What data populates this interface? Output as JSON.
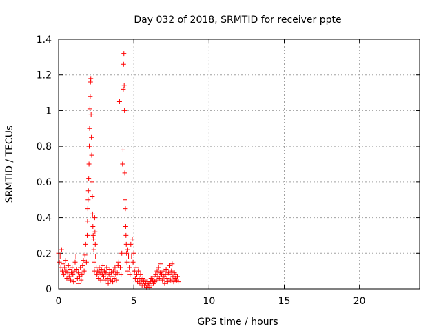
{
  "chart_data": {
    "type": "scatter",
    "title": "Day 032 of 2018, SRMTID for receiver ppte",
    "xlabel": "GPS time / hours",
    "ylabel": "SRMTID / TECUs",
    "xlim": [
      0,
      24
    ],
    "ylim": [
      0,
      1.4
    ],
    "xticks": [
      "0",
      "5",
      "10",
      "15",
      "20"
    ],
    "yticks": [
      "0",
      "0.2",
      "0.4",
      "0.6",
      "0.8",
      "1",
      "1.2",
      "1.4"
    ],
    "grid": true,
    "marker": "+",
    "color": "#ff0000",
    "series": [
      {
        "points": [
          [
            0.0,
            0.2
          ],
          [
            0.05,
            0.15
          ],
          [
            0.1,
            0.18
          ],
          [
            0.15,
            0.12
          ],
          [
            0.2,
            0.22
          ],
          [
            0.25,
            0.1
          ],
          [
            0.3,
            0.14
          ],
          [
            0.35,
            0.08
          ],
          [
            0.4,
            0.12
          ],
          [
            0.45,
            0.16
          ],
          [
            0.5,
            0.1
          ],
          [
            0.55,
            0.06
          ],
          [
            0.6,
            0.09
          ],
          [
            0.65,
            0.13
          ],
          [
            0.7,
            0.07
          ],
          [
            0.75,
            0.11
          ],
          [
            0.8,
            0.05
          ],
          [
            0.85,
            0.09
          ],
          [
            0.9,
            0.12
          ],
          [
            0.95,
            0.08
          ],
          [
            1.0,
            0.04
          ],
          [
            1.05,
            0.1
          ],
          [
            1.1,
            0.15
          ],
          [
            1.15,
            0.18
          ],
          [
            1.2,
            0.11
          ],
          [
            1.25,
            0.06
          ],
          [
            1.3,
            0.09
          ],
          [
            1.35,
            0.03
          ],
          [
            1.4,
            0.07
          ],
          [
            1.45,
            0.12
          ],
          [
            1.5,
            0.05
          ],
          [
            1.55,
            0.08
          ],
          [
            1.6,
            0.13
          ],
          [
            1.65,
            0.16
          ],
          [
            1.7,
            0.1
          ],
          [
            1.75,
            0.19
          ],
          [
            1.8,
            0.25
          ],
          [
            1.85,
            0.15
          ],
          [
            1.9,
            0.3
          ],
          [
            1.92,
            0.38
          ],
          [
            1.94,
            0.45
          ],
          [
            1.96,
            0.5
          ],
          [
            1.98,
            0.55
          ],
          [
            2.0,
            0.62
          ],
          [
            2.02,
            0.7
          ],
          [
            2.04,
            0.8
          ],
          [
            2.06,
            0.9
          ],
          [
            2.08,
            1.01
          ],
          [
            2.1,
            1.08
          ],
          [
            2.12,
            1.16
          ],
          [
            2.14,
            1.18
          ],
          [
            2.16,
            0.98
          ],
          [
            2.18,
            0.85
          ],
          [
            2.2,
            0.75
          ],
          [
            2.22,
            0.6
          ],
          [
            2.24,
            0.52
          ],
          [
            2.26,
            0.42
          ],
          [
            2.28,
            0.35
          ],
          [
            2.3,
            0.3
          ],
          [
            2.32,
            0.28
          ],
          [
            2.34,
            0.22
          ],
          [
            2.36,
            0.15
          ],
          [
            2.38,
            0.1
          ],
          [
            2.4,
            0.4
          ],
          [
            2.42,
            0.32
          ],
          [
            2.44,
            0.25
          ],
          [
            2.46,
            0.18
          ],
          [
            2.5,
            0.12
          ],
          [
            2.55,
            0.08
          ],
          [
            2.6,
            0.1
          ],
          [
            2.65,
            0.06
          ],
          [
            2.7,
            0.12
          ],
          [
            2.75,
            0.09
          ],
          [
            2.8,
            0.05
          ],
          [
            2.85,
            0.11
          ],
          [
            2.9,
            0.08
          ],
          [
            2.95,
            0.13
          ],
          [
            3.0,
            0.07
          ],
          [
            3.05,
            0.1
          ],
          [
            3.1,
            0.05
          ],
          [
            3.15,
            0.09
          ],
          [
            3.2,
            0.12
          ],
          [
            3.25,
            0.06
          ],
          [
            3.3,
            0.03
          ],
          [
            3.35,
            0.08
          ],
          [
            3.4,
            0.11
          ],
          [
            3.45,
            0.05
          ],
          [
            3.5,
            0.09
          ],
          [
            3.55,
            0.07
          ],
          [
            3.6,
            0.04
          ],
          [
            3.65,
            0.1
          ],
          [
            3.7,
            0.06
          ],
          [
            3.75,
            0.12
          ],
          [
            3.8,
            0.08
          ],
          [
            3.85,
            0.05
          ],
          [
            3.9,
            0.09
          ],
          [
            3.95,
            0.13
          ],
          [
            4.0,
            0.15
          ],
          [
            4.05,
            1.05
          ],
          [
            4.1,
            0.12
          ],
          [
            4.15,
            0.08
          ],
          [
            4.2,
            0.2
          ],
          [
            4.25,
            0.7
          ],
          [
            4.28,
            0.78
          ],
          [
            4.3,
            1.12
          ],
          [
            4.32,
            1.26
          ],
          [
            4.34,
            1.32
          ],
          [
            4.36,
            1.14
          ],
          [
            4.38,
            1.0
          ],
          [
            4.4,
            0.65
          ],
          [
            4.42,
            0.5
          ],
          [
            4.44,
            0.45
          ],
          [
            4.46,
            0.35
          ],
          [
            4.48,
            0.3
          ],
          [
            4.5,
            0.25
          ],
          [
            4.52,
            0.2
          ],
          [
            4.54,
            0.15
          ],
          [
            4.56,
            0.1
          ],
          [
            4.6,
            0.22
          ],
          [
            4.65,
            0.18
          ],
          [
            4.7,
            0.12
          ],
          [
            4.75,
            0.08
          ],
          [
            4.8,
            0.25
          ],
          [
            4.85,
            0.18
          ],
          [
            4.9,
            0.28
          ],
          [
            4.95,
            0.15
          ],
          [
            5.0,
            0.2
          ],
          [
            5.05,
            0.1
          ],
          [
            5.1,
            0.06
          ],
          [
            5.15,
            0.12
          ],
          [
            5.2,
            0.08
          ],
          [
            5.25,
            0.04
          ],
          [
            5.3,
            0.1
          ],
          [
            5.35,
            0.06
          ],
          [
            5.4,
            0.03
          ],
          [
            5.45,
            0.08
          ],
          [
            5.5,
            0.05
          ],
          [
            5.55,
            0.02
          ],
          [
            5.6,
            0.06
          ],
          [
            5.65,
            0.04
          ],
          [
            5.7,
            0.02
          ],
          [
            5.75,
            0.05
          ],
          [
            5.8,
            0.03
          ],
          [
            5.85,
            0.01
          ],
          [
            5.9,
            0.04
          ],
          [
            5.95,
            0.02
          ],
          [
            6.0,
            0.03
          ],
          [
            6.05,
            0.01
          ],
          [
            6.1,
            0.04
          ],
          [
            6.15,
            0.06
          ],
          [
            6.2,
            0.02
          ],
          [
            6.25,
            0.05
          ],
          [
            6.3,
            0.03
          ],
          [
            6.35,
            0.07
          ],
          [
            6.4,
            0.04
          ],
          [
            6.45,
            0.08
          ],
          [
            6.5,
            0.05
          ],
          [
            6.55,
            0.1
          ],
          [
            6.6,
            0.07
          ],
          [
            6.65,
            0.12
          ],
          [
            6.7,
            0.06
          ],
          [
            6.75,
            0.09
          ],
          [
            6.8,
            0.14
          ],
          [
            6.85,
            0.08
          ],
          [
            6.9,
            0.05
          ],
          [
            6.95,
            0.1
          ],
          [
            7.0,
            0.07
          ],
          [
            7.05,
            0.03
          ],
          [
            7.1,
            0.08
          ],
          [
            7.15,
            0.11
          ],
          [
            7.2,
            0.06
          ],
          [
            7.25,
            0.04
          ],
          [
            7.3,
            0.09
          ],
          [
            7.35,
            0.13
          ],
          [
            7.4,
            0.08
          ],
          [
            7.45,
            0.05
          ],
          [
            7.5,
            0.1
          ],
          [
            7.55,
            0.14
          ],
          [
            7.6,
            0.07
          ],
          [
            7.65,
            0.04
          ],
          [
            7.7,
            0.09
          ],
          [
            7.75,
            0.06
          ],
          [
            7.8,
            0.08
          ],
          [
            7.85,
            0.05
          ],
          [
            7.9,
            0.07
          ],
          [
            7.95,
            0.04
          ]
        ]
      }
    ]
  }
}
